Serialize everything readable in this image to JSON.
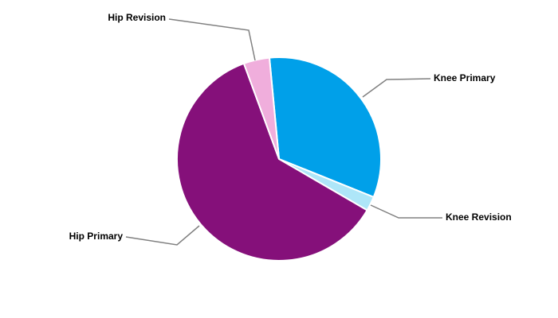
{
  "chart_data": {
    "type": "pie",
    "categories": [
      "Knee Primary",
      "Knee Revision",
      "Hip Primary",
      "Hip Revision"
    ],
    "values": [
      32.6,
      2.3,
      61,
      4.1
    ],
    "colors": [
      "#00a0e9",
      "#aee6f8",
      "#85107a",
      "#f0aedc"
    ]
  }
}
